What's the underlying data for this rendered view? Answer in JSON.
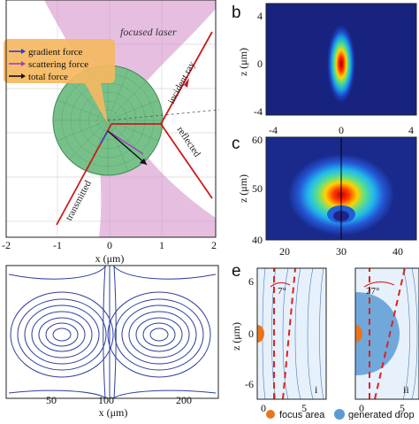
{
  "panel_a": {
    "laser_label": "focused laser",
    "legend": {
      "gradient": "gradient force",
      "scattering": "scattering force",
      "total": "total force"
    },
    "ray_labels": {
      "incident": "incident ray",
      "reflected": "reflected",
      "transmitted": "transmitted"
    },
    "x_ticks": [
      "-2",
      "-1",
      "0",
      "1",
      "2"
    ],
    "x_label": "x (μm)"
  },
  "panel_b": {
    "letter": "b",
    "y_label": "z (μm)",
    "y_ticks": [
      "4",
      "0",
      "-4"
    ],
    "x_ticks": [
      "-4",
      "0",
      "4"
    ]
  },
  "panel_c": {
    "letter": "c",
    "y_label": "z (μm)",
    "y_ticks": [
      "60",
      "50",
      "40"
    ],
    "x_ticks": [
      "20",
      "30",
      "40"
    ]
  },
  "panel_d": {
    "x_ticks": [
      "50",
      "100",
      "200"
    ],
    "x_label": "x (μm)"
  },
  "panel_e": {
    "letter": "e",
    "y_label": "z (μm)",
    "y_ticks": [
      "6",
      "0",
      "-6"
    ],
    "x_ticks": [
      "0",
      "5",
      "0",
      "5"
    ],
    "sub_i": "i",
    "sub_ii": "ii",
    "angle_i": "7°",
    "angle_ii": "27°",
    "legend": {
      "focus": "focus area",
      "droplet": "generated drop"
    }
  },
  "colors": {
    "laser_pink": "#d28ac6",
    "sphere_green": "#77c08a",
    "ray_red": "#cc1a1a",
    "stream_blue": "#2e3f9e",
    "legend_orange": "#f5b860"
  }
}
